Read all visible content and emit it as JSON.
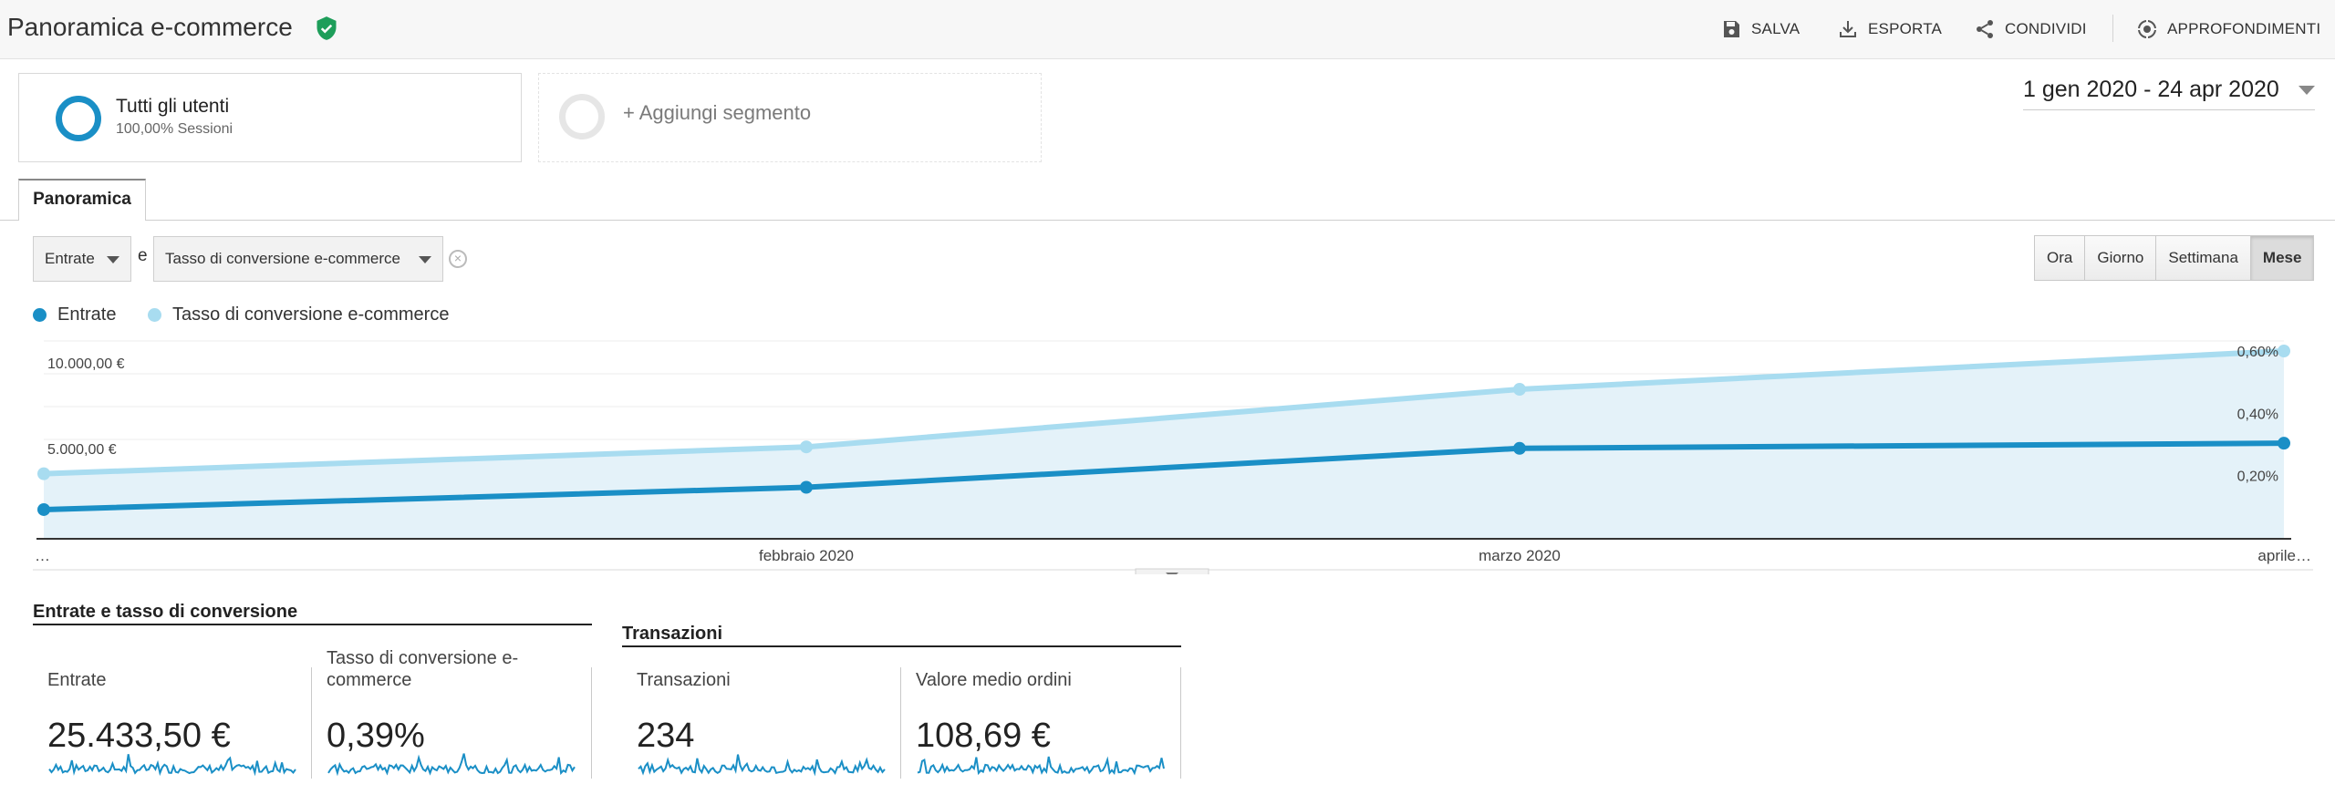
{
  "header": {
    "title": "Panoramica e-commerce",
    "actions": {
      "save": "SALVA",
      "export": "ESPORTA",
      "share": "CONDIVIDI",
      "insights": "APPROFONDIMENTI"
    }
  },
  "segments": {
    "primary": {
      "name": "Tutti gli utenti",
      "detail": "100,00% Sessioni"
    },
    "add_label": "+ Aggiungi segmento"
  },
  "date_range": "1 gen 2020 - 24 apr 2020",
  "tabs": [
    {
      "label": "Panoramica",
      "active": true
    }
  ],
  "metric_selectors": {
    "primary": "Entrate",
    "conjunction": "e",
    "secondary": "Tasso di conversione e-commerce"
  },
  "granularity": {
    "options": [
      "Ora",
      "Giorno",
      "Settimana",
      "Mese"
    ],
    "selected": "Mese"
  },
  "colors": {
    "revenue": "#1a8fc6",
    "conversion": "#a8dcf0",
    "area_fill": "#e4f2f9"
  },
  "chart_data": {
    "type": "line",
    "x": [
      "…",
      "febbraio 2020",
      "marzo 2020",
      "aprile…"
    ],
    "series": [
      {
        "name": "Entrate",
        "axis": "left",
        "values": [
          1650,
          2950,
          5220,
          5520
        ]
      },
      {
        "name": "Tasso di conversione e-commerce",
        "axis": "right",
        "values": [
          0.206,
          0.292,
          0.477,
          0.6
        ]
      }
    ],
    "left_axis": {
      "ticks": [
        "5.000,00 €",
        "10.000,00 €"
      ],
      "range": [
        0,
        11480
      ]
    },
    "right_axis": {
      "ticks": [
        "0,20%",
        "0,40%",
        "0,60%"
      ],
      "range": [
        0,
        0.6
      ]
    },
    "grid": true,
    "legend": "top-left"
  },
  "metric_groups": [
    {
      "title": "Entrate e tasso di conversione",
      "metrics": [
        {
          "label": "Entrate",
          "value": "25.433,50 €"
        },
        {
          "label": "Tasso di conversione e-commerce",
          "value": "0,39%"
        }
      ]
    },
    {
      "title": "Transazioni",
      "metrics": [
        {
          "label": "Transazioni",
          "value": "234"
        },
        {
          "label": "Valore medio ordini",
          "value": "108,69 €"
        }
      ]
    }
  ]
}
